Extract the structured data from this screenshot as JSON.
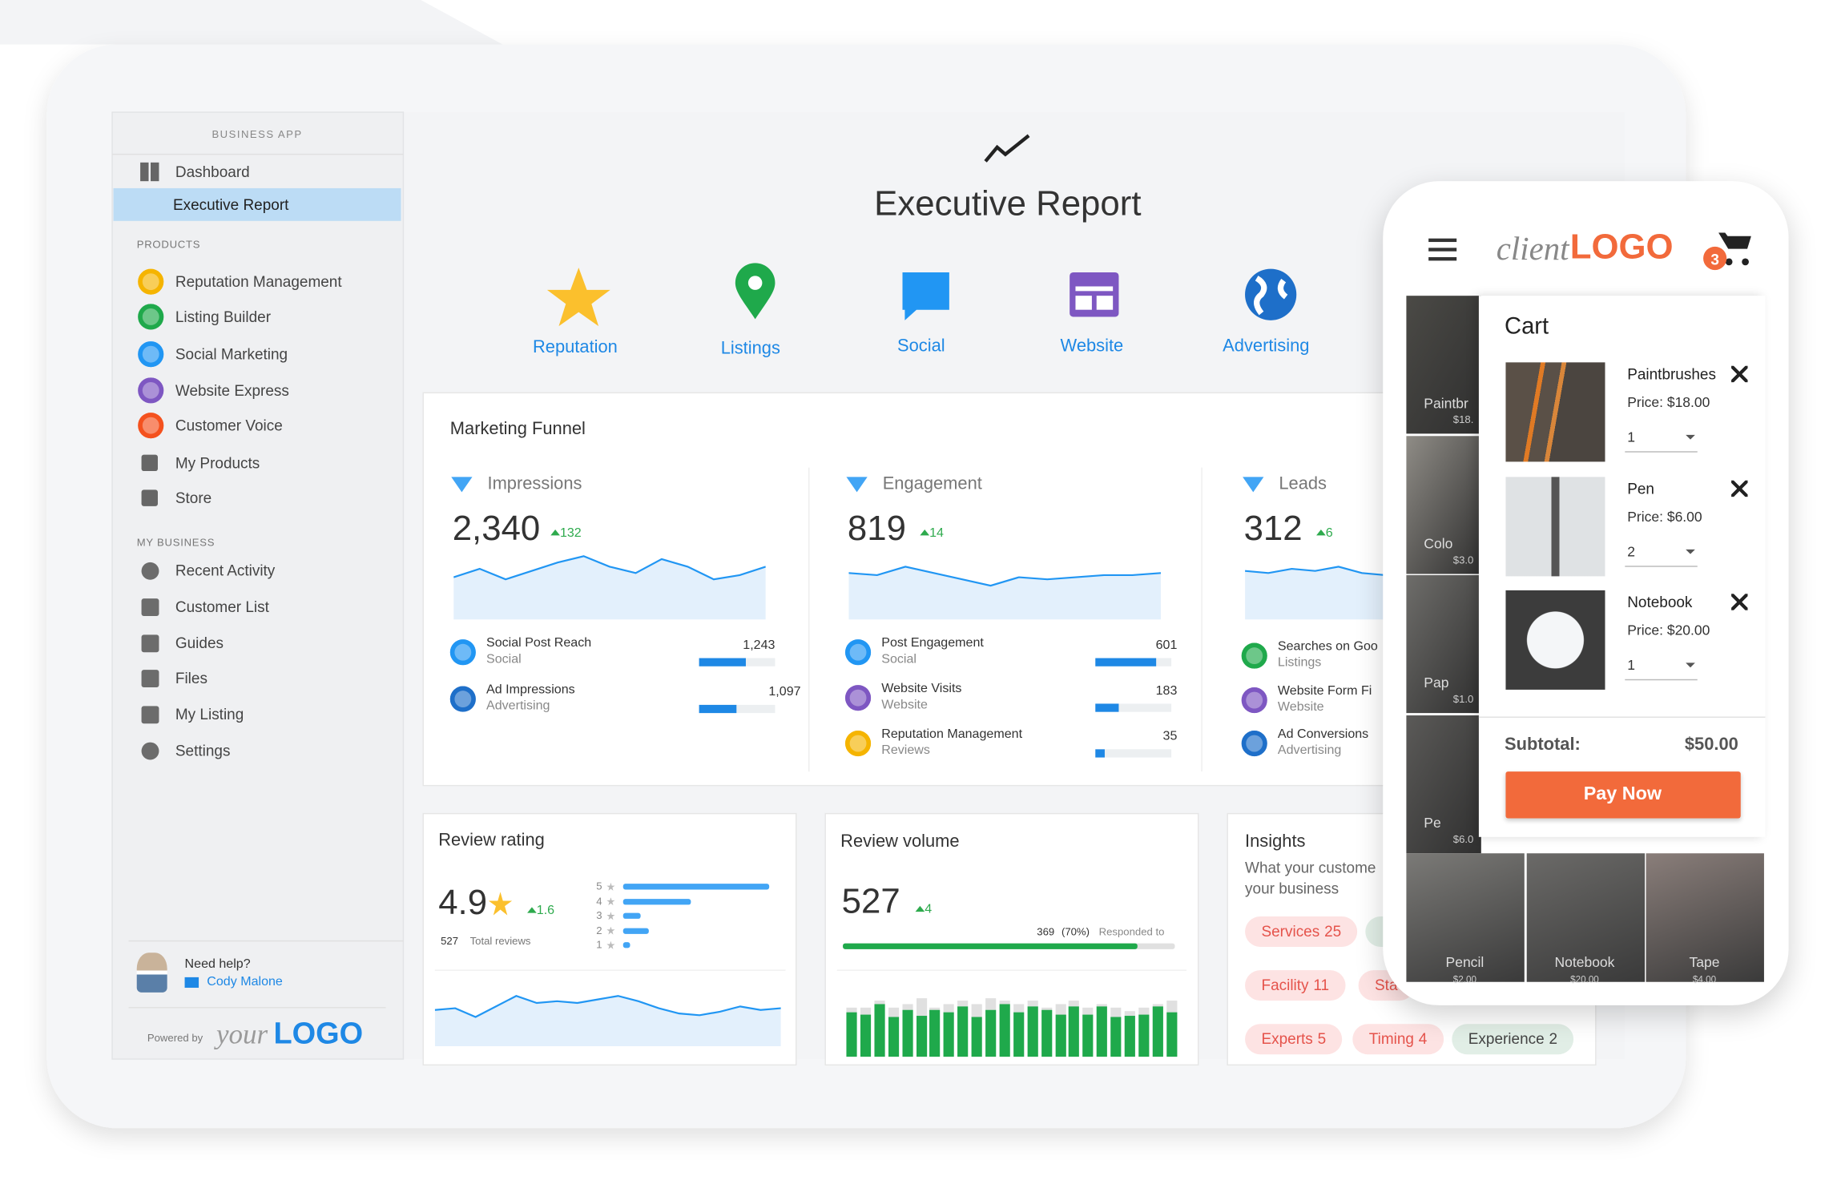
{
  "sidebar": {
    "section_label": "BUSINESS APP",
    "nav": [
      "Dashboard",
      "Executive Report"
    ],
    "products_label": "PRODUCTS",
    "products": [
      "Reputation Management",
      "Listing Builder",
      "Social Marketing",
      "Website Express",
      "Customer Voice",
      "My Products",
      "Store"
    ],
    "my_business_label": "MY BUSINESS",
    "my_business": [
      "Recent Activity",
      "Customer List",
      "Guides",
      "Files",
      "My Listing",
      "Settings"
    ],
    "help": {
      "title": "Need help?",
      "contact": "Cody Malone"
    },
    "powered_by": "Powered by",
    "brand": {
      "prefix": "your",
      "name": "LOGO"
    }
  },
  "header": {
    "title": "Executive Report",
    "tabs": [
      "Reputation",
      "Listings",
      "Social",
      "Website",
      "Advertising"
    ]
  },
  "funnel": {
    "title": "Marketing Funnel",
    "columns": [
      {
        "name": "Impressions",
        "value": "2,340",
        "change": "132",
        "items": [
          {
            "name": "Social Post Reach",
            "source": "Social",
            "value": "1,243"
          },
          {
            "name": "Ad Impressions",
            "source": "Advertising",
            "value": "1,097"
          }
        ]
      },
      {
        "name": "Engagement",
        "value": "819",
        "change": "14",
        "items": [
          {
            "name": "Post Engagement",
            "source": "Social",
            "value": "601"
          },
          {
            "name": "Website Visits",
            "source": "Website",
            "value": "183"
          },
          {
            "name": "Reputation Management",
            "source": "Reviews",
            "value": "35"
          }
        ]
      },
      {
        "name": "Leads",
        "value": "312",
        "change": "6",
        "items": [
          {
            "name": "Searches on Goo",
            "source": "Listings"
          },
          {
            "name": "Website Form Fi",
            "source": "Website"
          },
          {
            "name": "Ad Conversions",
            "source": "Advertising"
          }
        ]
      }
    ]
  },
  "review_rating": {
    "title": "Review rating",
    "score": "4.9",
    "change": "1.6",
    "total": "527",
    "total_label": "Total reviews",
    "stars": [
      "5",
      "4",
      "3",
      "2",
      "1"
    ]
  },
  "review_volume": {
    "title": "Review volume",
    "value": "527",
    "change": "4",
    "responded": "369",
    "responded_pct": "(70%)",
    "responded_label": "Responded to"
  },
  "insights": {
    "title": "Insights",
    "subtitle": [
      "What your custome",
      "your business"
    ],
    "tags": [
      {
        "label": "Services",
        "count": "25",
        "color": "#fde3e3"
      },
      {
        "label": "Facility",
        "count": "11",
        "color": "#fde3e3"
      },
      {
        "label": "Sta",
        "color": "#fde3e3"
      },
      {
        "label": "Experts",
        "count": "5",
        "color": "#fde3e3"
      },
      {
        "label": "Timing",
        "count": "4",
        "color": "#fde3e3"
      },
      {
        "label": "Experience",
        "count": "2",
        "color": "#e1eee6"
      }
    ]
  },
  "phone": {
    "brand": {
      "prefix": "client",
      "name": "LOGO"
    },
    "cart_count": "3",
    "cart_title": "Cart",
    "items": [
      {
        "name": "Paintbrushes",
        "price": "Price: $18.00",
        "qty": "1"
      },
      {
        "name": "Pen",
        "price": "Price: $6.00",
        "qty": "2"
      },
      {
        "name": "Notebook",
        "price": "Price: $20.00",
        "qty": "1"
      }
    ],
    "subtotal_label": "Subtotal:",
    "subtotal": "$50.00",
    "button": "Pay Now",
    "side_products": [
      {
        "name": "Paintbr",
        "price": "$18."
      },
      {
        "name": "Colo",
        "price": "$3.0"
      },
      {
        "name": "Pap",
        "price": "$1.0"
      },
      {
        "name": "Pe",
        "price": "$6.0"
      }
    ],
    "bottom_products": [
      {
        "name": "Pencil",
        "price": "$2.00"
      },
      {
        "name": "Notebook",
        "price": "$20.00"
      },
      {
        "name": "Tape",
        "price": "$4.00"
      }
    ]
  }
}
